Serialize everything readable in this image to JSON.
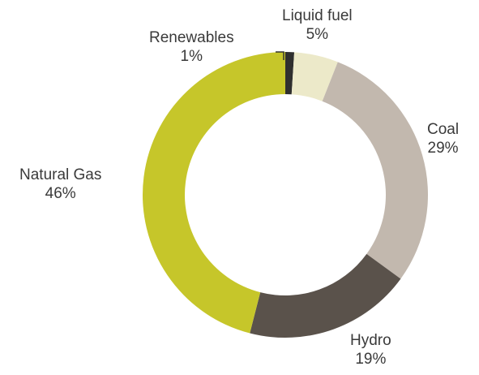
{
  "chart_data": {
    "type": "donut",
    "title": "",
    "start": "top",
    "direction": "clockwise",
    "series": [
      {
        "name": "Renewables",
        "value": 1,
        "value_label": "1%",
        "color": "#2f2f2f"
      },
      {
        "name": "Liquid fuel",
        "value": 5,
        "value_label": "5%",
        "color": "#ece9c9"
      },
      {
        "name": "Coal",
        "value": 29,
        "value_label": "29%",
        "color": "#c2b8ae"
      },
      {
        "name": "Hydro",
        "value": 19,
        "value_label": "19%",
        "color": "#5a524b"
      },
      {
        "name": "Natural Gas",
        "value": 46,
        "value_label": "46%",
        "color": "#c6c62a"
      }
    ]
  }
}
